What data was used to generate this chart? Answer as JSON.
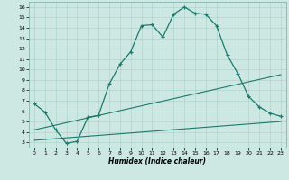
{
  "xlabel": "Humidex (Indice chaleur)",
  "bg_color": "#cde8e2",
  "line_color": "#1a7a6e",
  "xlim": [
    -0.5,
    23.5
  ],
  "ylim": [
    2.5,
    16.5
  ],
  "xticks": [
    0,
    1,
    2,
    3,
    4,
    5,
    6,
    7,
    8,
    9,
    10,
    11,
    12,
    13,
    14,
    15,
    16,
    17,
    18,
    19,
    20,
    21,
    22,
    23
  ],
  "yticks": [
    3,
    4,
    5,
    6,
    7,
    8,
    9,
    10,
    11,
    12,
    13,
    14,
    15,
    16
  ],
  "line1_x": [
    0,
    1,
    2,
    3,
    4,
    5,
    6,
    7,
    8,
    9,
    10,
    11,
    12,
    13,
    14,
    15,
    16,
    17,
    18,
    19,
    20,
    21,
    22,
    23
  ],
  "line1_y": [
    6.7,
    5.9,
    4.2,
    2.9,
    3.1,
    5.4,
    5.6,
    8.6,
    10.5,
    11.7,
    14.2,
    14.3,
    13.1,
    15.3,
    16.0,
    15.4,
    15.3,
    14.2,
    11.4,
    9.6,
    7.4,
    6.4,
    5.8,
    5.5
  ],
  "line2_x": [
    0,
    23
  ],
  "line2_y": [
    3.2,
    5.0
  ],
  "line3_x": [
    0,
    23
  ],
  "line3_y": [
    4.2,
    9.5
  ]
}
